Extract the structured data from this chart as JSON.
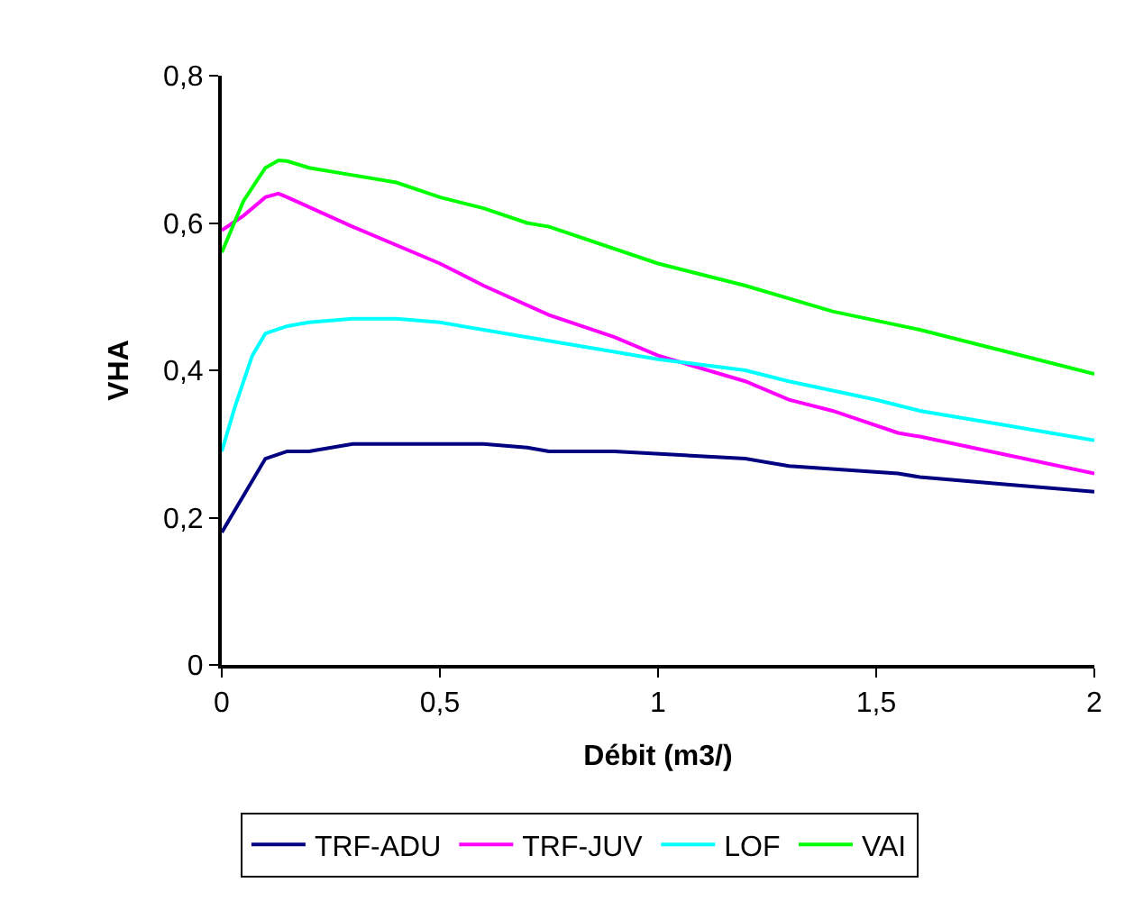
{
  "chart_data": {
    "type": "line",
    "xlabel": "Débit (m3/)",
    "ylabel": "VHA",
    "xlim": [
      0,
      2
    ],
    "xticks": [
      {
        "value": 0,
        "label": "0"
      },
      {
        "value": 0.5,
        "label": "0,5"
      },
      {
        "value": 1,
        "label": "1"
      },
      {
        "value": 1.5,
        "label": "1,5"
      },
      {
        "value": 2,
        "label": "2"
      }
    ],
    "ylim": [
      0,
      0.8
    ],
    "yticks": [
      {
        "value": 0,
        "label": "0"
      },
      {
        "value": 0.2,
        "label": "0,2"
      },
      {
        "value": 0.4,
        "label": "0,4"
      },
      {
        "value": 0.6,
        "label": "0,6"
      },
      {
        "value": 0.8,
        "label": "0,8"
      }
    ],
    "legend": "bottom",
    "marker": "none",
    "line_style": "solid",
    "series": [
      {
        "name": "TRF-ADU",
        "color": "#000080",
        "x": [
          0,
          0.05,
          0.1,
          0.15,
          0.2,
          0.3,
          0.5,
          0.6,
          0.7,
          0.75,
          0.9,
          1.2,
          1.3,
          1.55,
          1.6,
          1.8,
          2.0
        ],
        "values": [
          0.18,
          0.23,
          0.28,
          0.29,
          0.29,
          0.3,
          0.3,
          0.3,
          0.295,
          0.29,
          0.29,
          0.28,
          0.27,
          0.26,
          0.255,
          0.245,
          0.235
        ]
      },
      {
        "name": "TRF-JUV",
        "color": "#ff00ff",
        "x": [
          0,
          0.05,
          0.1,
          0.13,
          0.15,
          0.3,
          0.5,
          0.6,
          0.75,
          0.9,
          1.0,
          1.2,
          1.3,
          1.4,
          1.55,
          1.6,
          1.8,
          2.0
        ],
        "values": [
          0.59,
          0.61,
          0.635,
          0.64,
          0.635,
          0.595,
          0.545,
          0.515,
          0.475,
          0.445,
          0.42,
          0.385,
          0.36,
          0.345,
          0.315,
          0.31,
          0.285,
          0.26
        ]
      },
      {
        "name": "LOF",
        "color": "#00ffff",
        "x": [
          0,
          0.03,
          0.07,
          0.1,
          0.15,
          0.2,
          0.3,
          0.4,
          0.5,
          0.7,
          0.9,
          1.0,
          1.2,
          1.3,
          1.5,
          1.6,
          1.8,
          2.0
        ],
        "values": [
          0.29,
          0.35,
          0.42,
          0.45,
          0.46,
          0.465,
          0.47,
          0.47,
          0.465,
          0.445,
          0.425,
          0.415,
          0.4,
          0.385,
          0.36,
          0.345,
          0.325,
          0.305
        ]
      },
      {
        "name": "VAI",
        "color": "#00ff00",
        "x": [
          0,
          0.05,
          0.1,
          0.13,
          0.15,
          0.2,
          0.3,
          0.4,
          0.5,
          0.6,
          0.7,
          0.75,
          1.0,
          1.2,
          1.4,
          1.6,
          1.8,
          2.0
        ],
        "values": [
          0.56,
          0.63,
          0.675,
          0.685,
          0.684,
          0.675,
          0.665,
          0.655,
          0.635,
          0.62,
          0.6,
          0.595,
          0.545,
          0.515,
          0.48,
          0.455,
          0.425,
          0.395
        ]
      }
    ]
  }
}
